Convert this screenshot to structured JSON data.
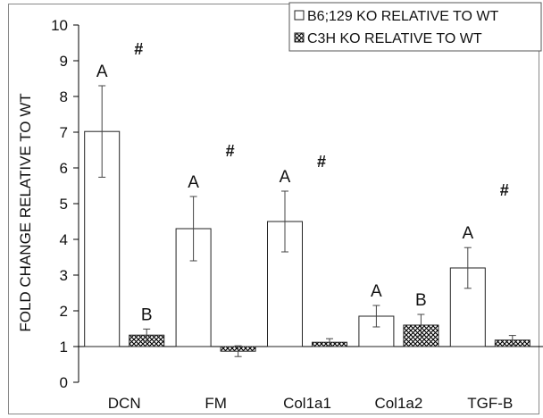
{
  "chart_data": {
    "type": "bar",
    "title": "",
    "xlabel": "",
    "ylabel": "FOLD CHANGE RELATIVE TO WT",
    "ylim": [
      0,
      10
    ],
    "yticks": [
      0,
      1,
      2,
      3,
      4,
      5,
      6,
      7,
      8,
      9,
      10
    ],
    "baseline": 1,
    "categories": [
      "DCN",
      "FM",
      "Col1a1",
      "Col1a2",
      "TGF-B"
    ],
    "legend_position": "top-right",
    "series": [
      {
        "name": "B6;129 KO RELATIVE TO WT",
        "pattern": "open",
        "values": [
          7.02,
          4.3,
          4.5,
          1.85,
          3.2
        ],
        "errors": [
          1.28,
          0.9,
          0.85,
          0.3,
          0.57
        ],
        "labels": [
          "A",
          "A",
          "A",
          "A",
          "A"
        ]
      },
      {
        "name": "C3H KO RELATIVE TO WT",
        "pattern": "crosshatch",
        "values": [
          1.32,
          0.87,
          1.12,
          1.6,
          1.18
        ],
        "errors": [
          0.17,
          0.15,
          0.1,
          0.3,
          0.13
        ],
        "labels": [
          "B",
          "",
          "",
          "B",
          ""
        ]
      }
    ],
    "annotations": [
      {
        "category": "DCN",
        "text": "#",
        "y": 9.35
      },
      {
        "category": "FM",
        "text": "#",
        "y": 6.5
      },
      {
        "category": "Col1a1",
        "text": "#",
        "y": 6.2
      },
      {
        "category": "TGF-B",
        "text": "#",
        "y": 5.4
      }
    ]
  }
}
